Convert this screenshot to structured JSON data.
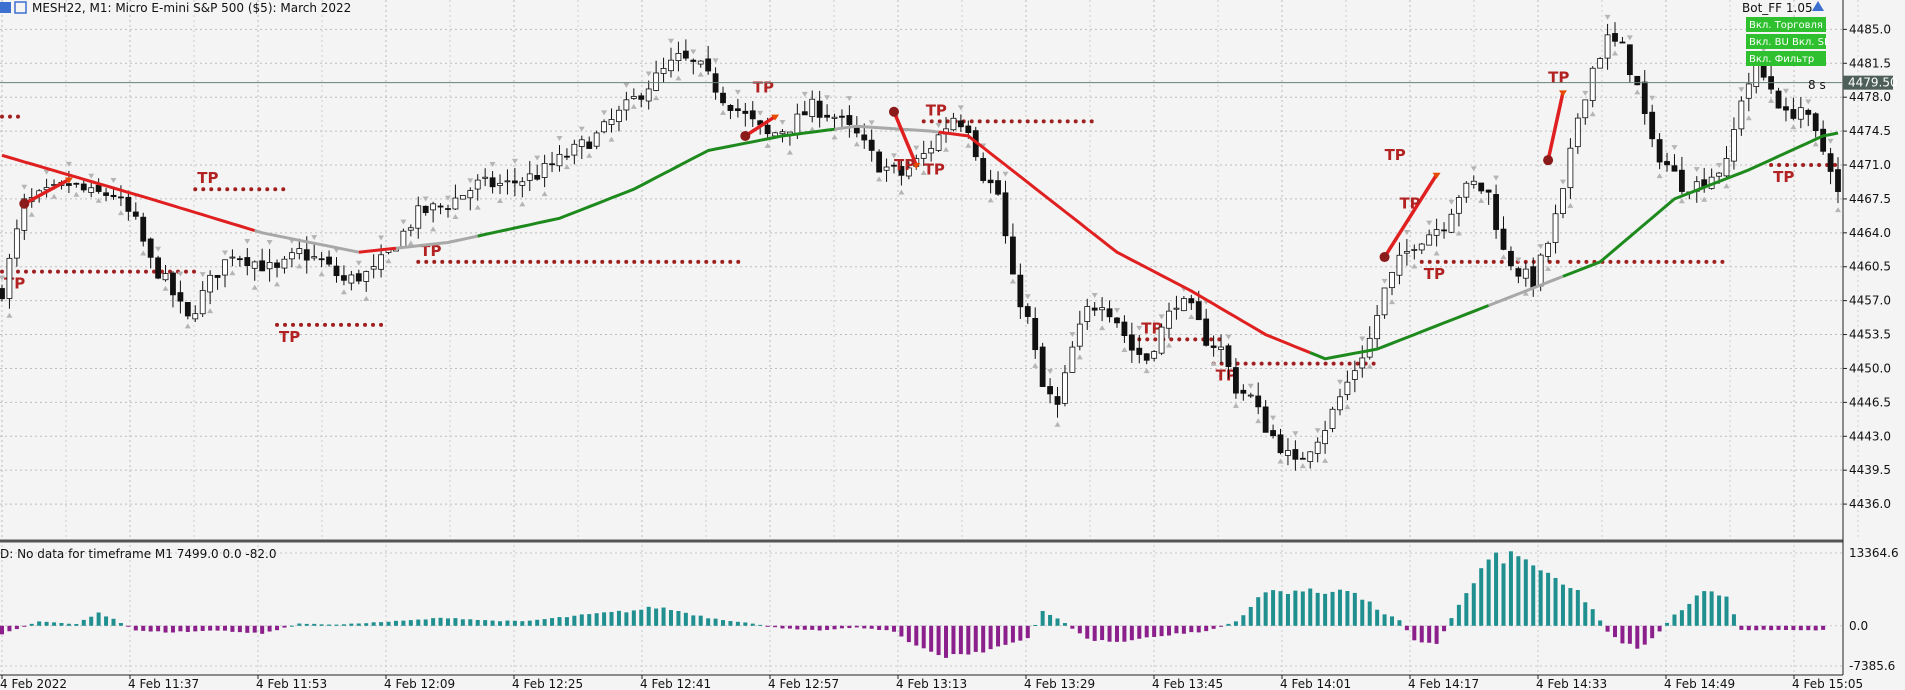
{
  "header": {
    "title": "MESH22, M1:  Micro E-mini S&P 500 ($5): March 2022",
    "bot_label": "Bot_FF 1.05",
    "timer": "8 s"
  },
  "panel_buttons": [
    "Вкл. Торговля",
    "Вкл. BU  Вкл. SL",
    "Вкл. Фильтр"
  ],
  "current_price_label": "4479.50",
  "indicator": {
    "caption": "D: No data for timeframe M1 7499.0 0.0 -82.0",
    "scale_labels": [
      "13364.6",
      "0.0",
      "-7385.6"
    ]
  },
  "chart_data": [
    {
      "type": "candlestick",
      "instrument": "MESH22",
      "timeframe": "M1",
      "yticks": [
        4485.0,
        4481.5,
        4478.0,
        4474.5,
        4471.0,
        4467.5,
        4464.0,
        4460.5,
        4457.0,
        4453.5,
        4450.0,
        4446.5,
        4443.0,
        4439.5,
        4436.0
      ],
      "ytick_labels": [
        "4485.0",
        "4481.5",
        "4478.0",
        "4474.5",
        "4471.0",
        "4467.5",
        "4464.0",
        "4460.5",
        "4457.0",
        "4453.5",
        "4450.0",
        "4446.5",
        "4443.0",
        "4439.5",
        "4436.0"
      ],
      "ylim": [
        4432.5,
        4487.0
      ],
      "xtick_labels": [
        "4 Feb 2022",
        "4 Feb 11:37",
        "4 Feb 11:53",
        "4 Feb 12:09",
        "4 Feb 12:25",
        "4 Feb 12:41",
        "4 Feb 12:57",
        "4 Feb 13:13",
        "4 Feb 13:29",
        "4 Feb 13:45",
        "4 Feb 14:01",
        "4 Feb 14:17",
        "4 Feb 14:33",
        "4 Feb 14:49",
        "4 Feb 15:05"
      ],
      "current_price": 4479.5,
      "close_path": [
        [
          0,
          4458
        ],
        [
          3,
          4467
        ],
        [
          6,
          4468
        ],
        [
          9,
          4469
        ],
        [
          12,
          4468
        ],
        [
          15,
          4468
        ],
        [
          18,
          4465
        ],
        [
          20,
          4461
        ],
        [
          22,
          4459
        ],
        [
          25,
          4455
        ],
        [
          28,
          4459
        ],
        [
          31,
          4462
        ],
        [
          34,
          4461
        ],
        [
          37,
          4460
        ],
        [
          40,
          4462
        ],
        [
          43,
          4461
        ],
        [
          46,
          4459
        ],
        [
          50,
          4460
        ],
        [
          53,
          4463
        ],
        [
          56,
          4466
        ],
        [
          60,
          4467
        ],
        [
          64,
          4469
        ],
        [
          68,
          4469
        ],
        [
          72,
          4470
        ],
        [
          76,
          4472
        ],
        [
          80,
          4474
        ],
        [
          84,
          4477
        ],
        [
          88,
          4480
        ],
        [
          91,
          4482
        ],
        [
          94,
          4481
        ],
        [
          97,
          4478
        ],
        [
          100,
          4476
        ],
        [
          103,
          4474
        ],
        [
          106,
          4475
        ],
        [
          109,
          4477
        ],
        [
          112,
          4476
        ],
        [
          115,
          4474
        ],
        [
          118,
          4471
        ],
        [
          121,
          4470
        ],
        [
          124,
          4472
        ],
        [
          126,
          4474
        ],
        [
          128,
          4476
        ],
        [
          130,
          4475
        ],
        [
          132,
          4470
        ],
        [
          134,
          4468
        ],
        [
          136,
          4459
        ],
        [
          138,
          4455
        ],
        [
          140,
          4448
        ],
        [
          142,
          4446
        ],
        [
          144,
          4452
        ],
        [
          146,
          4456
        ],
        [
          148,
          4457
        ],
        [
          150,
          4455
        ],
        [
          152,
          4452
        ],
        [
          154,
          4451
        ],
        [
          156,
          4454
        ],
        [
          158,
          4457
        ],
        [
          160,
          4456
        ],
        [
          162,
          4453
        ],
        [
          164,
          4452
        ],
        [
          166,
          4448
        ],
        [
          168,
          4447
        ],
        [
          170,
          4444
        ],
        [
          172,
          4442
        ],
        [
          174,
          4440
        ],
        [
          176,
          4442
        ],
        [
          178,
          4444
        ],
        [
          180,
          4447
        ],
        [
          182,
          4450
        ],
        [
          184,
          4453
        ],
        [
          186,
          4458
        ],
        [
          188,
          4461
        ],
        [
          190,
          4463
        ],
        [
          192,
          4464
        ],
        [
          194,
          4465
        ],
        [
          196,
          4468
        ],
        [
          198,
          4469
        ],
        [
          200,
          4468
        ],
        [
          202,
          4462
        ],
        [
          204,
          4460
        ],
        [
          206,
          4459
        ],
        [
          208,
          4463
        ],
        [
          210,
          4468
        ],
        [
          212,
          4476
        ],
        [
          214,
          4481
        ],
        [
          216,
          4484
        ],
        [
          218,
          4483
        ],
        [
          220,
          4479
        ],
        [
          222,
          4473
        ],
        [
          224,
          4471
        ],
        [
          226,
          4469
        ],
        [
          228,
          4469
        ],
        [
          230,
          4470
        ],
        [
          232,
          4471
        ],
        [
          234,
          4478
        ],
        [
          236,
          4481
        ],
        [
          238,
          4479
        ],
        [
          240,
          4476
        ],
        [
          242,
          4477
        ],
        [
          244,
          4474
        ],
        [
          246,
          4471
        ],
        [
          247,
          4468
        ]
      ],
      "moving_average": [
        [
          0,
          4472.0
        ],
        [
          20,
          4467.5
        ],
        [
          35,
          4464.0
        ],
        [
          48,
          4462.0
        ],
        [
          60,
          4463.0
        ],
        [
          75,
          4465.5
        ],
        [
          85,
          4468.5
        ],
        [
          95,
          4472.5
        ],
        [
          105,
          4474.0
        ],
        [
          115,
          4475.0
        ],
        [
          125,
          4474.5
        ],
        [
          130,
          4474.0
        ],
        [
          140,
          4468.0
        ],
        [
          150,
          4462.0
        ],
        [
          160,
          4458.0
        ],
        [
          170,
          4453.5
        ],
        [
          178,
          4451.0
        ],
        [
          185,
          4452.0
        ],
        [
          195,
          4455.0
        ],
        [
          205,
          4458.0
        ],
        [
          215,
          4461.0
        ],
        [
          225,
          4467.5
        ],
        [
          235,
          4470.5
        ],
        [
          245,
          4474.0
        ],
        [
          247,
          4474.3
        ]
      ],
      "ma_color_segments": [
        {
          "from": 0,
          "to": 34,
          "color": "#e02020"
        },
        {
          "from": 34,
          "to": 48,
          "color": "#a8a8a8"
        },
        {
          "from": 48,
          "to": 53,
          "color": "#e02020"
        },
        {
          "from": 53,
          "to": 64,
          "color": "#a8a8a8"
        },
        {
          "from": 64,
          "to": 112,
          "color": "#1e8a1e"
        },
        {
          "from": 112,
          "to": 126,
          "color": "#a8a8a8"
        },
        {
          "from": 126,
          "to": 176,
          "color": "#e02020"
        },
        {
          "from": 176,
          "to": 200,
          "color": "#1e8a1e"
        },
        {
          "from": 200,
          "to": 210,
          "color": "#a8a8a8"
        },
        {
          "from": 210,
          "to": 247,
          "color": "#1e8a1e"
        }
      ],
      "tp_levels": [
        {
          "from": 26,
          "to": 38,
          "price": 4468.5,
          "label": "TP",
          "label_side": "above"
        },
        {
          "from": 0,
          "to": 26,
          "price": 4460.0,
          "label": "TP",
          "label_side": "below"
        },
        {
          "from": 37,
          "to": 52,
          "price": 4454.5,
          "label": "TP",
          "label_side": "below"
        },
        {
          "from": 56,
          "to": 100,
          "price": 4461.0,
          "label": "TP",
          "label_side": "above"
        },
        {
          "from": 0,
          "to": 3,
          "price": 4476.0,
          "label": "",
          "label_side": "none"
        },
        {
          "from": 124,
          "to": 147,
          "price": 4475.5,
          "label": "TP",
          "label_side": "above"
        },
        {
          "from": 153,
          "to": 164,
          "price": 4453.0,
          "label": "TP",
          "label_side": "above"
        },
        {
          "from": 163,
          "to": 185,
          "price": 4450.5,
          "label": "TP",
          "label_side": "below"
        },
        {
          "from": 191,
          "to": 210,
          "price": 4461.0,
          "label": "TP",
          "label_side": "below"
        },
        {
          "from": 211,
          "to": 232,
          "price": 4461.0,
          "label": "",
          "label_side": "none"
        },
        {
          "from": 238,
          "to": 247,
          "price": 4471.0,
          "label": "TP",
          "label_side": "below"
        }
      ],
      "trade_lines": [
        {
          "x1": 3,
          "y1": 4467.0,
          "x2": 9,
          "y2": 4469.5
        },
        {
          "x1": 100,
          "y1": 4474.0,
          "x2": 104,
          "y2": 4476.0
        },
        {
          "x1": 120,
          "y1": 4476.5,
          "x2": 123,
          "y2": 4471.0
        },
        {
          "x1": 186,
          "y1": 4461.5,
          "x2": 193,
          "y2": 4470.0
        },
        {
          "x1": 208,
          "y1": 4471.5,
          "x2": 210,
          "y2": 4478.5
        }
      ],
      "tp_labels_extra": [
        {
          "x": 101,
          "price": 4478.5
        },
        {
          "x": 124,
          "price": 4470.0
        },
        {
          "x": 186,
          "price": 4471.5
        },
        {
          "x": 188,
          "price": 4466.5
        },
        {
          "x": 208,
          "price": 4479.5
        },
        {
          "x": 120,
          "price": 4470.5
        }
      ]
    },
    {
      "type": "bar",
      "title": "D: No data for timeframe M1 7499.0 0.0 -82.0",
      "ylim": [
        -7385.6,
        13364.6
      ],
      "zero": 0.0,
      "positive_color": "#1f8f8f",
      "negative_color": "#8b1f8b",
      "values_path": [
        [
          0,
          -1500
        ],
        [
          5,
          800
        ],
        [
          10,
          300
        ],
        [
          13,
          2500
        ],
        [
          15,
          1200
        ],
        [
          18,
          -800
        ],
        [
          22,
          -1200
        ],
        [
          30,
          -900
        ],
        [
          35,
          -1500
        ],
        [
          40,
          400
        ],
        [
          45,
          200
        ],
        [
          50,
          600
        ],
        [
          55,
          1000
        ],
        [
          60,
          1500
        ],
        [
          65,
          1000
        ],
        [
          70,
          800
        ],
        [
          75,
          1500
        ],
        [
          80,
          2200
        ],
        [
          85,
          2800
        ],
        [
          88,
          3400
        ],
        [
          90,
          3000
        ],
        [
          95,
          1500
        ],
        [
          100,
          600
        ],
        [
          105,
          -500
        ],
        [
          110,
          -800
        ],
        [
          115,
          -300
        ],
        [
          120,
          -1000
        ],
        [
          123,
          -4000
        ],
        [
          127,
          -5500
        ],
        [
          131,
          -4800
        ],
        [
          135,
          -3500
        ],
        [
          138,
          -2500
        ],
        [
          140,
          2800
        ],
        [
          143,
          500
        ],
        [
          146,
          -2500
        ],
        [
          150,
          -3000
        ],
        [
          154,
          -2300
        ],
        [
          158,
          -1500
        ],
        [
          162,
          -1000
        ],
        [
          166,
          800
        ],
        [
          168,
          3500
        ],
        [
          170,
          6200
        ],
        [
          174,
          6500
        ],
        [
          178,
          6000
        ],
        [
          180,
          7200
        ],
        [
          183,
          5000
        ],
        [
          186,
          2200
        ],
        [
          188,
          1000
        ],
        [
          190,
          -2500
        ],
        [
          193,
          -3500
        ],
        [
          195,
          1500
        ],
        [
          198,
          8000
        ],
        [
          200,
          12000
        ],
        [
          203,
          12800
        ],
        [
          206,
          11500
        ],
        [
          209,
          8000
        ],
        [
          212,
          6200
        ],
        [
          214,
          3000
        ],
        [
          216,
          -1000
        ],
        [
          218,
          -3000
        ],
        [
          220,
          -4000
        ],
        [
          222,
          -2500
        ],
        [
          225,
          2000
        ],
        [
          228,
          5500
        ],
        [
          230,
          7000
        ],
        [
          232,
          5000
        ],
        [
          234,
          -800
        ]
      ]
    }
  ]
}
